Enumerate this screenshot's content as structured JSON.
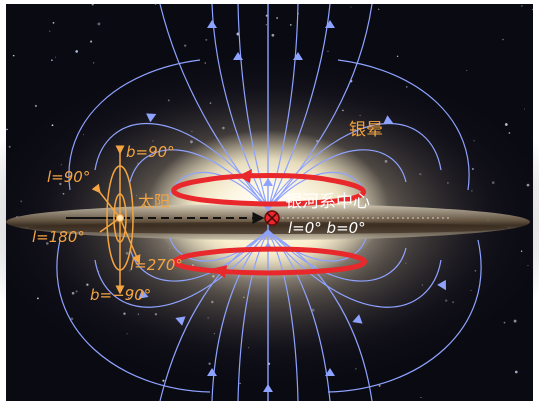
{
  "labels": {
    "halo": "银晕",
    "sun": "太阳",
    "galactic_center": "银河系中心",
    "center_coords": "l=0°  b=0°",
    "b_north": "b=90°",
    "b_south": "b=−90°",
    "l_90": "l=90°",
    "l_180": "l=180°",
    "l_270": "l=270°"
  },
  "colors": {
    "field_lines": "#8ea2ff",
    "rotation": "#e8282a",
    "coordinates": "#f4a440",
    "label_white": "#ffffff",
    "background": "#0a0a12",
    "galaxy_core": "#fff6dc",
    "dust_lane": "#4a3a2a"
  }
}
